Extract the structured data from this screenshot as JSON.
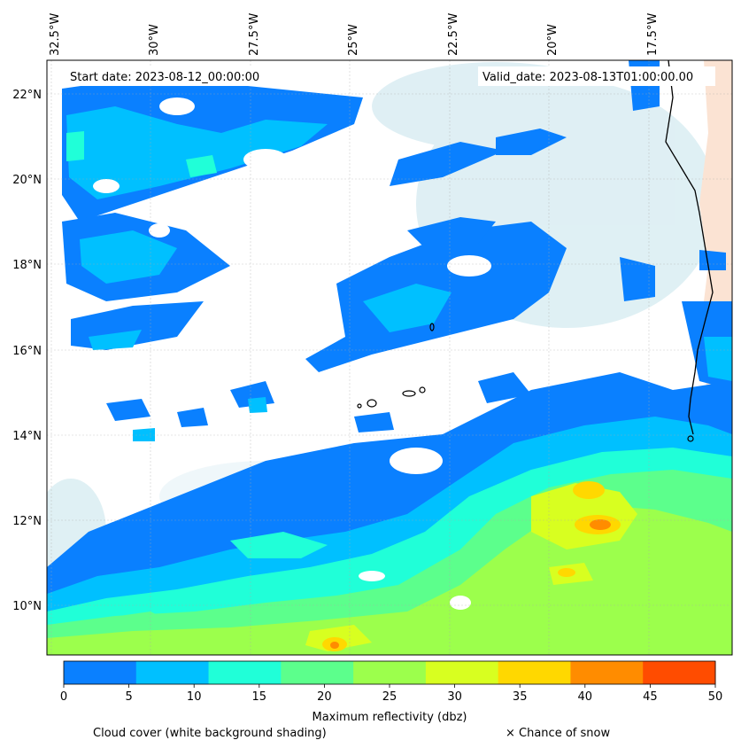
{
  "header": {
    "start_date": "Start date: 2023-08-12_00:00:00",
    "valid_date": "Valid_date: 2023-08-13T01:00:00.00"
  },
  "axes": {
    "lon_labels": [
      "32.5°W",
      "30°W",
      "27.5°W",
      "25°W",
      "22.5°W",
      "20°W",
      "17.5°W"
    ],
    "lat_labels": [
      "22°N",
      "20°N",
      "18°N",
      "16°N",
      "14°N",
      "12°N",
      "10°N"
    ]
  },
  "colorbar": {
    "ticks": [
      "0",
      "5",
      "10",
      "15",
      "20",
      "25",
      "30",
      "35",
      "40",
      "45",
      "50"
    ],
    "colors": [
      "#0a80ff",
      "#00c0ff",
      "#20ffd8",
      "#5cff8c",
      "#9cff4c",
      "#d8ff20",
      "#ffd800",
      "#ff8c00",
      "#ff4c00"
    ],
    "label": "Maximum reflectivity (dbz)"
  },
  "legend": {
    "cloud_cover": "Cloud cover (white background shading)",
    "snow": "× Chance of snow"
  }
}
